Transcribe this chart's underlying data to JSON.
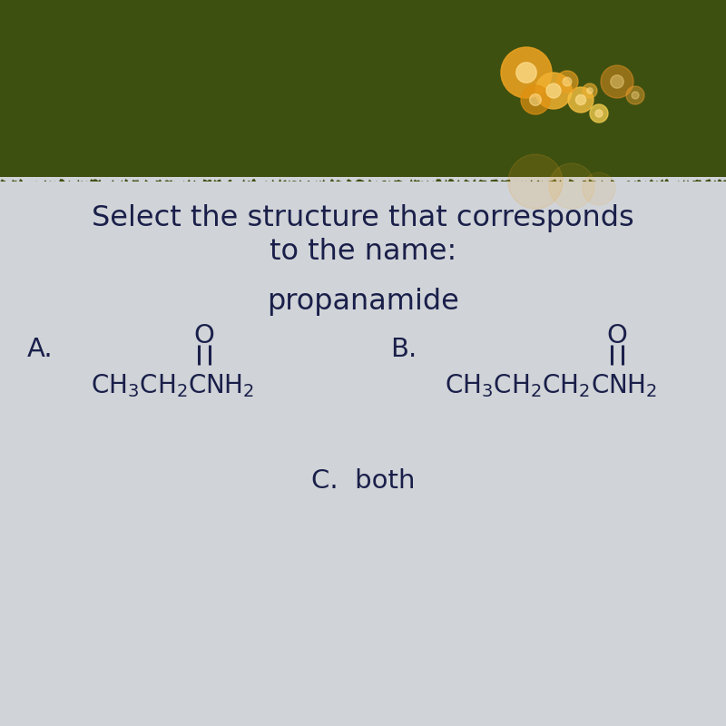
{
  "title_line1": "Select the structure that corresponds",
  "title_line2": "to the name:",
  "compound_name": "propanamide",
  "label_A": "A.",
  "label_B": "B.",
  "label_C": "C.  both",
  "bg_color_main": "#d8dade",
  "bg_color_top_green": "#4a5e1a",
  "text_color": "#1a1f4a",
  "font_size_title": 23,
  "font_size_compound": 23,
  "font_size_labels": 21,
  "font_size_formula": 20,
  "fig_width": 8,
  "fig_height": 8
}
